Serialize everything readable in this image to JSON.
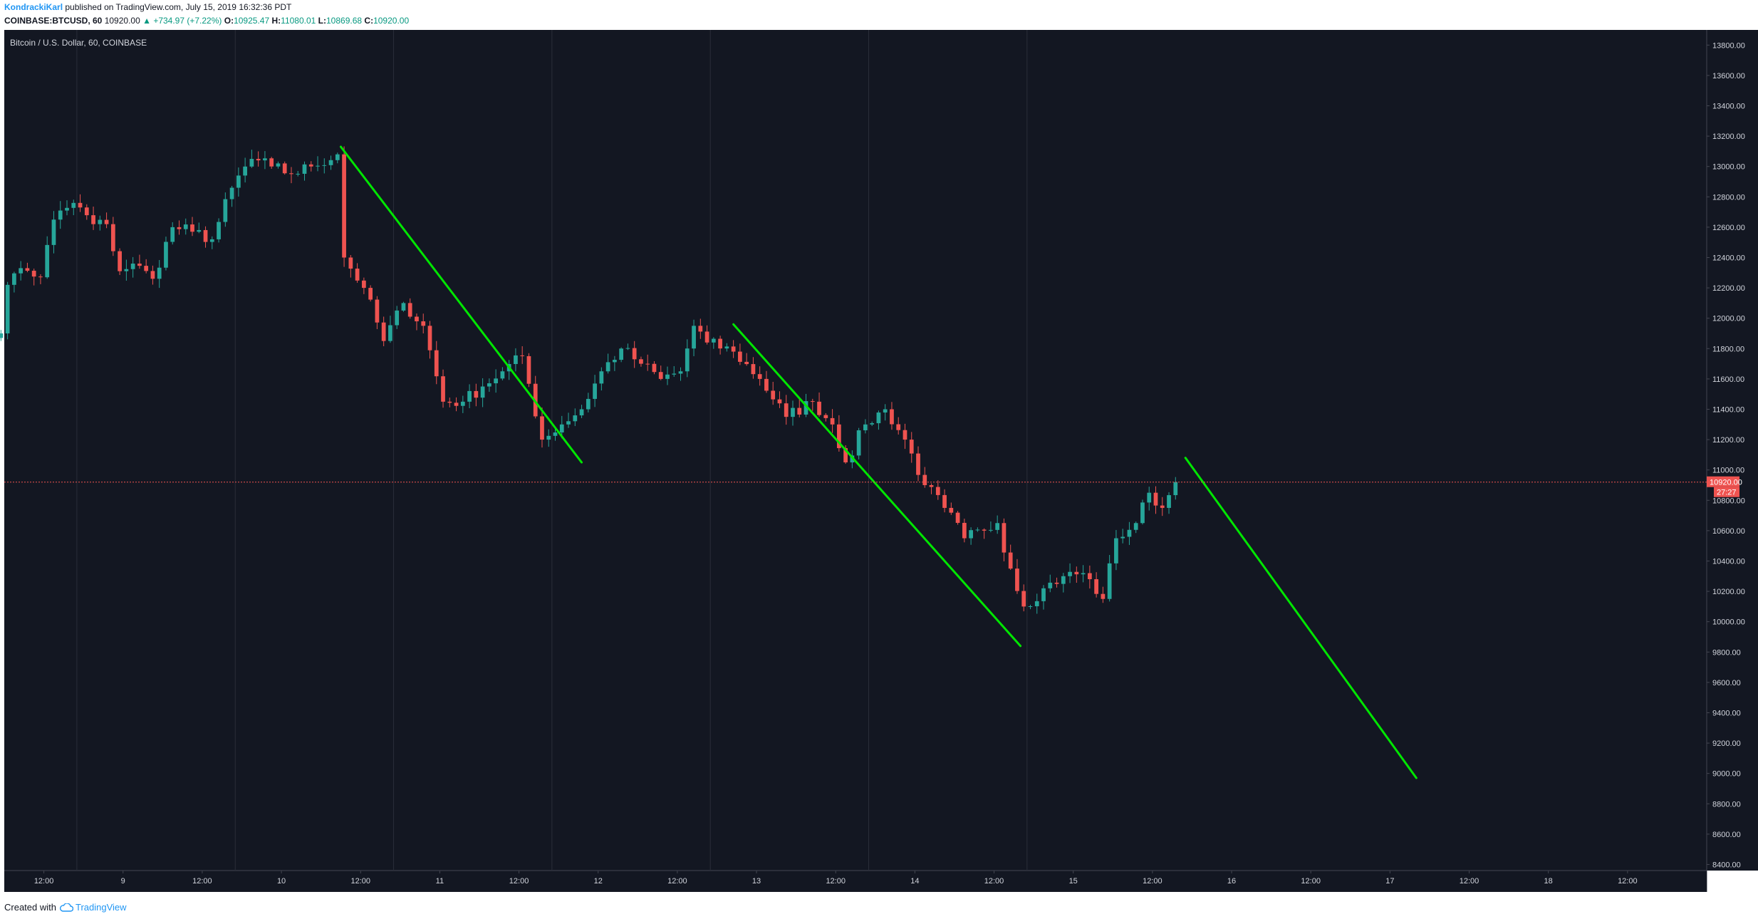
{
  "header": {
    "author": "KondrackiKarl",
    "published": "published on TradingView.com, July 15, 2019 16:32:36 PDT",
    "symbol": "COINBASE:BTCUSD, 60",
    "last": "10920.00",
    "change": "▲ +734.97 (+7.22%)",
    "o_label": "O:",
    "o_value": "10925.47",
    "h_label": "H:",
    "h_value": "11080.01",
    "l_label": "L:",
    "l_value": "10869.68",
    "c_label": "C:",
    "c_value": "10920.00"
  },
  "footer": {
    "created_with": "Created with",
    "brand": "TradingView"
  },
  "colors": {
    "background": "#131722",
    "up": "#26a69a",
    "down": "#ef5350",
    "trendline": "#00e600",
    "grid": "#2a2e39",
    "axis_text": "#d1d4dc",
    "price_tag": "#ef5350"
  },
  "chart_data": {
    "type": "candlestick",
    "title": "Bitcoin / U.S. Dollar, 60, COINBASE",
    "x_unit": "hours since July 8, 2019 00:00 (chart time)",
    "ylim": [
      8360,
      13900
    ],
    "y_ticks": [
      8400,
      8600,
      8800,
      9000,
      9200,
      9400,
      9600,
      9800,
      10000,
      10200,
      10400,
      10600,
      10800,
      11000,
      11200,
      11400,
      11600,
      11800,
      12000,
      12200,
      12400,
      12600,
      12800,
      13000,
      13200,
      13400,
      13600,
      13800
    ],
    "x_ticks": [
      {
        "h": 12,
        "label": "12:00"
      },
      {
        "h": 24,
        "label": "9"
      },
      {
        "h": 36,
        "label": "12:00"
      },
      {
        "h": 48,
        "label": "10"
      },
      {
        "h": 60,
        "label": "12:00"
      },
      {
        "h": 72,
        "label": "11"
      },
      {
        "h": 84,
        "label": "12:00"
      },
      {
        "h": 96,
        "label": "12"
      },
      {
        "h": 108,
        "label": "12:00"
      },
      {
        "h": 120,
        "label": "13"
      },
      {
        "h": 132,
        "label": "12:00"
      },
      {
        "h": 144,
        "label": "14"
      },
      {
        "h": 156,
        "label": "12:00"
      },
      {
        "h": 168,
        "label": "15"
      },
      {
        "h": 180,
        "label": "12:00"
      },
      {
        "h": 192,
        "label": "16"
      },
      {
        "h": 204,
        "label": "12:00"
      },
      {
        "h": 216,
        "label": "17"
      },
      {
        "h": 228,
        "label": "12:00"
      },
      {
        "h": 240,
        "label": "18"
      },
      {
        "h": 252,
        "label": "12:00"
      }
    ],
    "x_range": [
      6,
      264
    ],
    "session_lines_h": [
      17,
      41,
      65,
      89,
      113,
      137,
      161
    ],
    "last_price": 10920.0,
    "last_price_label": "10920.00",
    "countdown_label": "27:27",
    "keypoints": [
      [
        0,
        11880
      ],
      [
        5,
        11900
      ],
      [
        6,
        12220
      ],
      [
        8,
        12330
      ],
      [
        11,
        12270
      ],
      [
        13,
        12650
      ],
      [
        16,
        12760
      ],
      [
        19,
        12620
      ],
      [
        21,
        12620
      ],
      [
        23,
        12310
      ],
      [
        25,
        12360
      ],
      [
        28,
        12260
      ],
      [
        31,
        12600
      ],
      [
        34,
        12570
      ],
      [
        37,
        12520
      ],
      [
        40,
        12860
      ],
      [
        43,
        13050
      ],
      [
        46,
        13000
      ],
      [
        49,
        12950
      ],
      [
        52,
        13000
      ],
      [
        56,
        13080
      ],
      [
        57,
        12400
      ],
      [
        60,
        12200
      ],
      [
        63,
        11850
      ],
      [
        66,
        12100
      ],
      [
        69,
        11950
      ],
      [
        72,
        11450
      ],
      [
        75,
        11450
      ],
      [
        78,
        11550
      ],
      [
        81,
        11650
      ],
      [
        84,
        11750
      ],
      [
        87,
        11200
      ],
      [
        90,
        11300
      ],
      [
        93,
        11400
      ],
      [
        96,
        11650
      ],
      [
        99,
        11800
      ],
      [
        102,
        11700
      ],
      [
        105,
        11600
      ],
      [
        108,
        11650
      ],
      [
        110,
        11950
      ],
      [
        112,
        11840
      ],
      [
        116,
        11780
      ],
      [
        120,
        11600
      ],
      [
        124,
        11350
      ],
      [
        128,
        11450
      ],
      [
        131,
        11300
      ],
      [
        133,
        11050
      ],
      [
        136,
        11300
      ],
      [
        139,
        11400
      ],
      [
        142,
        11200
      ],
      [
        145,
        10900
      ],
      [
        148,
        10750
      ],
      [
        151,
        10550
      ],
      [
        154,
        10600
      ],
      [
        156,
        10650
      ],
      [
        158,
        10350
      ],
      [
        160,
        10100
      ],
      [
        163,
        10220
      ],
      [
        166,
        10300
      ],
      [
        169,
        10320
      ],
      [
        172,
        10150
      ],
      [
        174,
        10550
      ],
      [
        177,
        10650
      ],
      [
        179,
        10850
      ],
      [
        181,
        10750
      ],
      [
        183,
        10920
      ]
    ],
    "annotations": {
      "trendlines": [
        {
          "from": [
            57,
            13130
          ],
          "to": [
            93.5,
            11050
          ]
        },
        {
          "from": [
            116.5,
            11960
          ],
          "to": [
            160,
            9840
          ]
        },
        {
          "from": [
            185,
            11080
          ],
          "to": [
            220,
            8970
          ]
        }
      ]
    }
  }
}
